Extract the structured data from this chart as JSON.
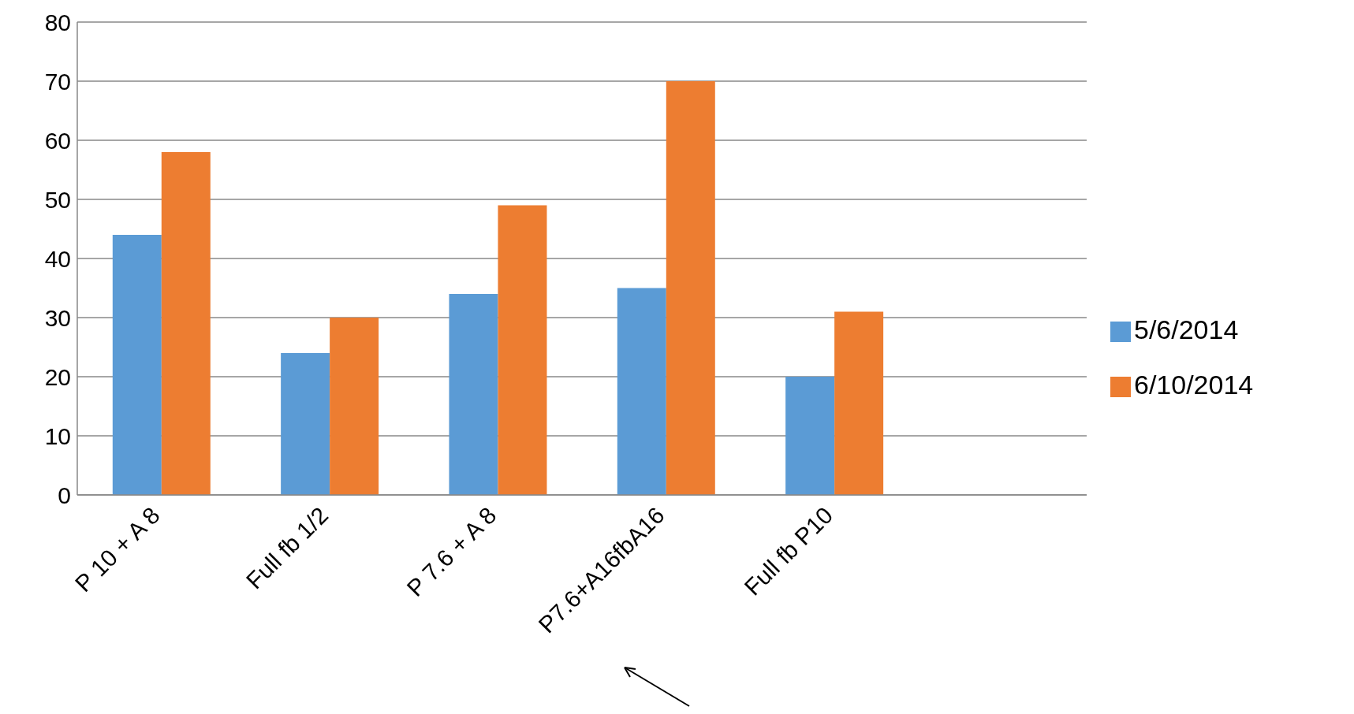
{
  "chart_data": {
    "type": "bar",
    "categories": [
      "P 10 + A 8",
      "Full fb 1/2",
      "P 7.6 + A 8",
      "P7.6+A16fbA16",
      "Full fb P10",
      null
    ],
    "series": [
      {
        "name": "5/6/2014",
        "color": "#5b9bd5",
        "values": [
          44,
          24,
          34,
          35,
          20,
          null
        ]
      },
      {
        "name": "6/10/2014",
        "color": "#ed7d31",
        "values": [
          58,
          30,
          49,
          70,
          31,
          null
        ]
      }
    ],
    "ylim": [
      0,
      80
    ],
    "yticks": [
      0,
      10,
      20,
      30,
      40,
      50,
      60,
      70,
      80
    ],
    "grid": "y",
    "legend": "right"
  }
}
